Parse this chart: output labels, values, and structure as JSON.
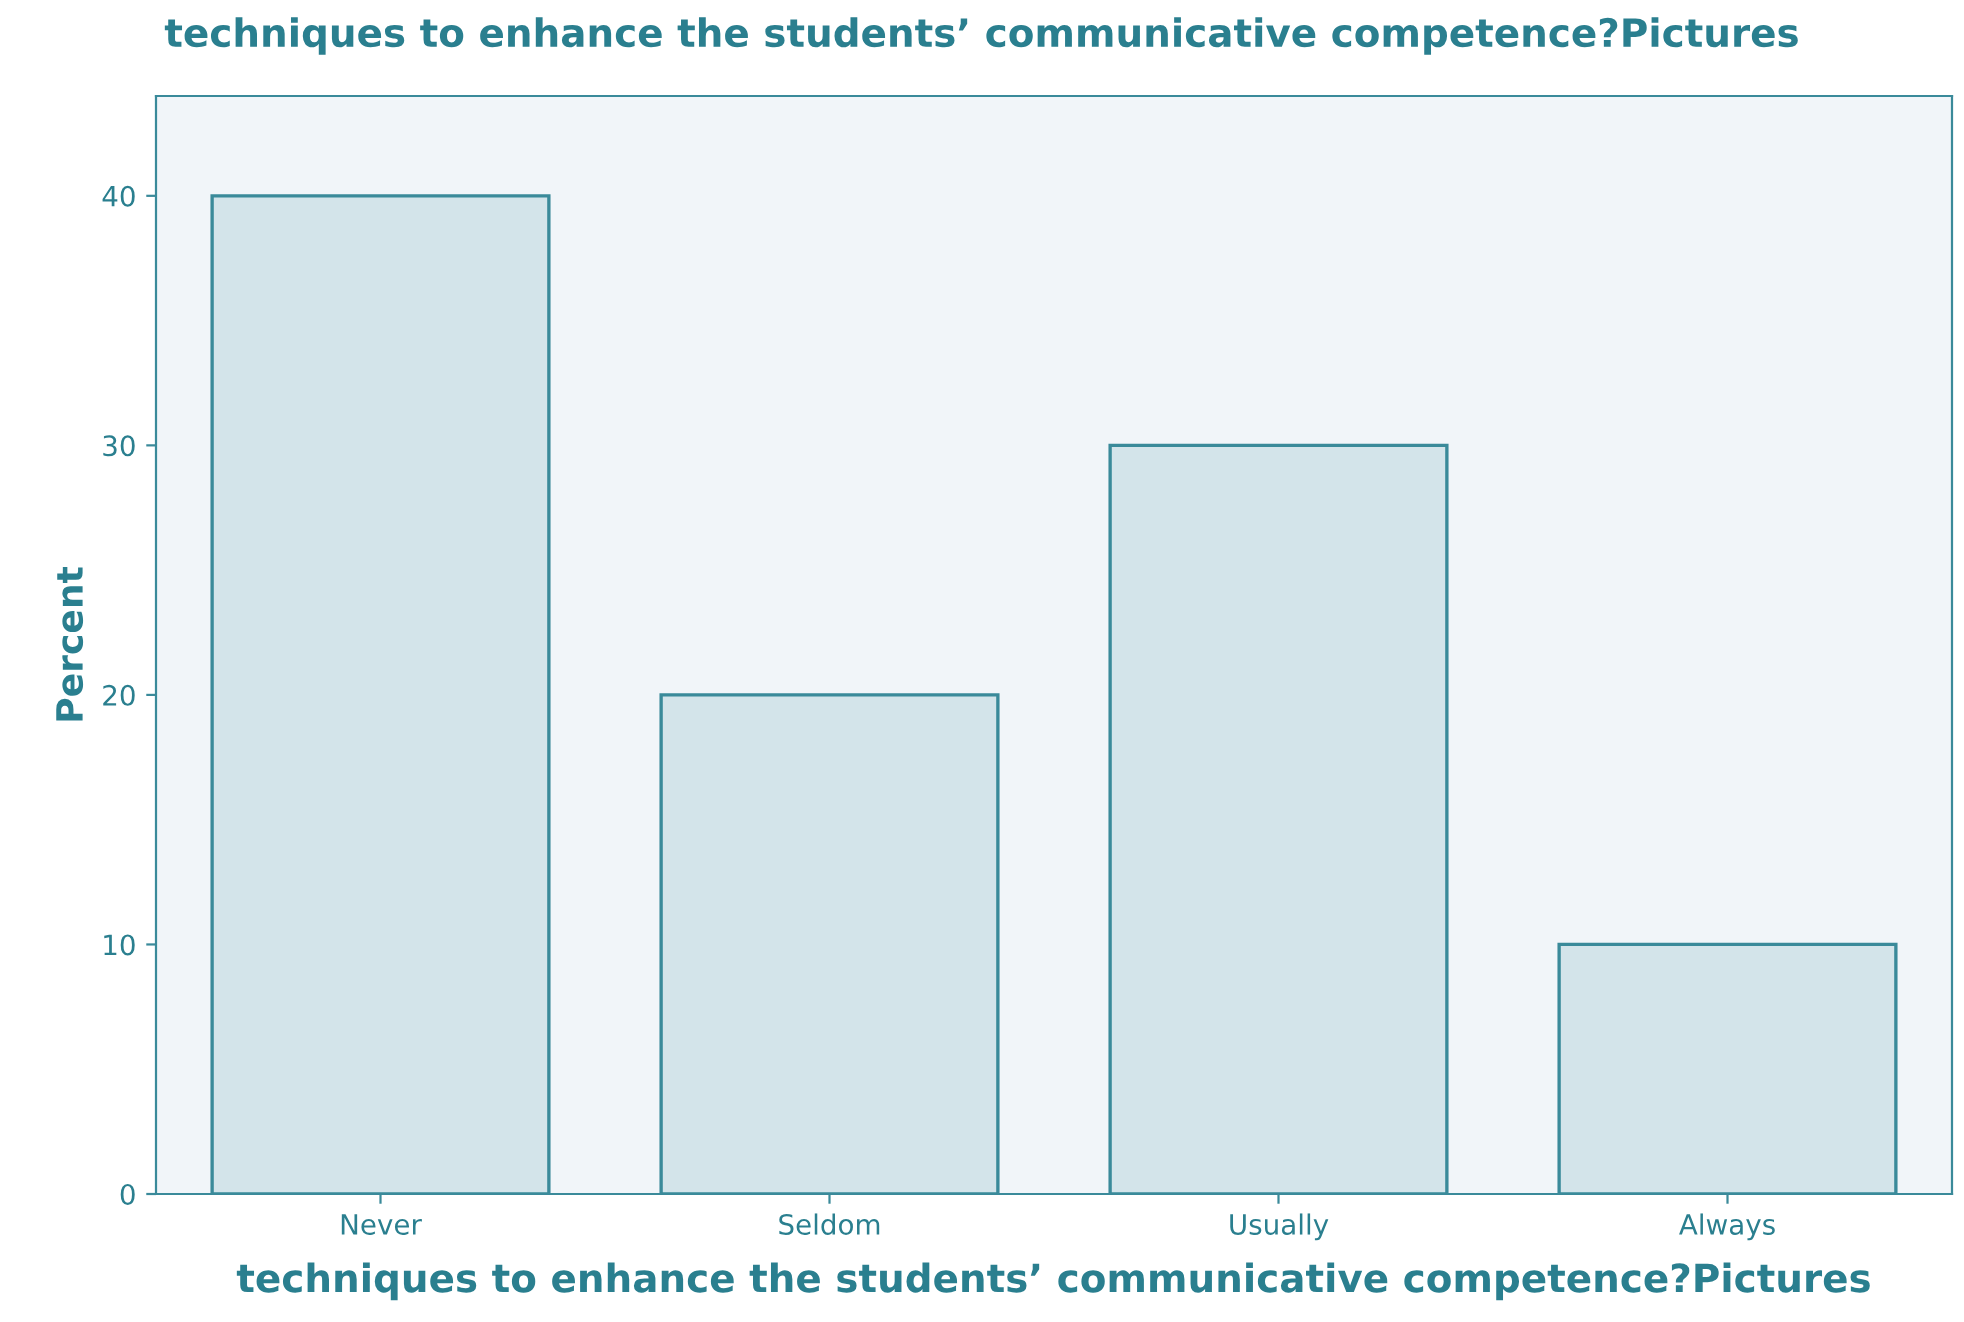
{
  "chart_data": {
    "type": "bar",
    "title": "techniques to enhance the students’ communicative competence?Pictures",
    "xlabel": "techniques to enhance the students’ communicative competence?Pictures",
    "ylabel": "Percent",
    "categories": [
      "Never",
      "Seldom",
      "Usually",
      "Always"
    ],
    "values": [
      40,
      20,
      30,
      10
    ],
    "color": "#d3e4ea",
    "ylim": [
      0,
      44
    ],
    "yticks": [
      0,
      10,
      20,
      30,
      40
    ],
    "grid": false
  }
}
